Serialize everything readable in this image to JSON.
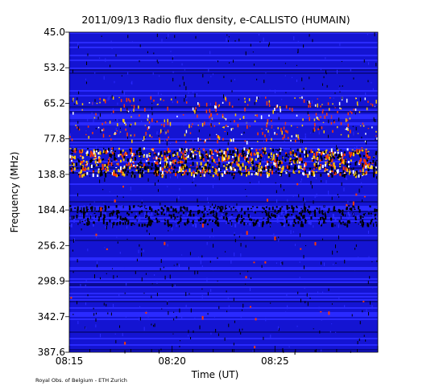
{
  "chart_data": {
    "type": "heatmap",
    "title": "2011/09/13  Radio flux density, e-CALLISTO (HUMAIN)",
    "xlabel": "Time (UT)",
    "ylabel": "Frequency (MHz)",
    "x_ticks": [
      "08:15",
      "08:20",
      "08:25"
    ],
    "y_ticks": [
      "45.0",
      "53.2",
      "65.2",
      "77.8",
      "138.8",
      "184.4",
      "256.2",
      "298.9",
      "342.7",
      "387.6"
    ],
    "xlim": [
      "08:15",
      "08:30"
    ],
    "ylim": [
      45.0,
      387.6
    ],
    "y_axis_inverted": true,
    "colormap": [
      "#000000",
      "#1414d2",
      "#2a2aff",
      "#ff3a00",
      "#ffc800",
      "#ffffff"
    ],
    "background_level_color": "#1414d2",
    "features": [
      {
        "type": "bright-band",
        "frequency_mhz": "~138.8",
        "time_range": [
          "08:15",
          "08:30"
        ]
      },
      {
        "type": "intermittent-emission",
        "frequency_range_mhz": [
          "65.2",
          "77.8"
        ],
        "time_range": [
          "08:15",
          "08:30"
        ]
      },
      {
        "type": "dark-band",
        "frequency_mhz": "~184.4",
        "time_range": [
          "08:15",
          "08:30"
        ]
      }
    ]
  },
  "credit": "Royal Obs. of Belgium - ETH Zurich"
}
